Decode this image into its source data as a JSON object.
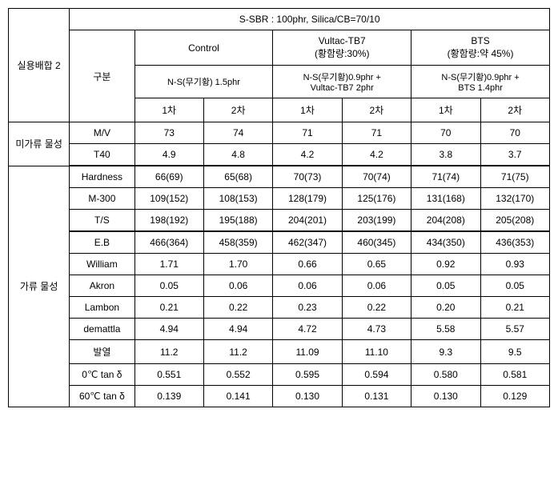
{
  "header": {
    "title": "S-SBR : 100phr, Silica/CB=70/10",
    "col_groups": [
      "Control",
      "Vultac-TB7\n(황함량:30%)",
      "BTS\n(황함량:약 45%)"
    ],
    "subheaders": [
      "N-S(무기황) 1.5phr",
      "N-S(무기황)0.9phr +\nVultac-TB7 2phr",
      "N-S(무기황)0.9phr +\nBTS 1.4phr"
    ],
    "trials": [
      "1차",
      "2차",
      "1차",
      "2차",
      "1차",
      "2차"
    ],
    "gubun": "구분"
  },
  "rowlabels": {
    "group1": "실용배합 2",
    "group2": "미가류 물성",
    "group3": "가류 물성"
  },
  "rows": [
    {
      "prop": "M/V",
      "vals": [
        "73",
        "74",
        "71",
        "71",
        "70",
        "70"
      ]
    },
    {
      "prop": "T40",
      "vals": [
        "4.9",
        "4.8",
        "4.2",
        "4.2",
        "3.8",
        "3.7"
      ]
    },
    {
      "prop": "Hardness",
      "vals": [
        "66(69)",
        "65(68)",
        "70(73)",
        "70(74)",
        "71(74)",
        "71(75)"
      ]
    },
    {
      "prop": "M-300",
      "vals": [
        "109(152)",
        "108(153)",
        "128(179)",
        "125(176)",
        "131(168)",
        "132(170)"
      ]
    },
    {
      "prop": "T/S",
      "vals": [
        "198(192)",
        "195(188)",
        "204(201)",
        "203(199)",
        "204(208)",
        "205(208)"
      ]
    },
    {
      "prop": "E.B",
      "vals": [
        "466(364)",
        "458(359)",
        "462(347)",
        "460(345)",
        "434(350)",
        "436(353)"
      ]
    },
    {
      "prop": "William",
      "vals": [
        "1.71",
        "1.70",
        "0.66",
        "0.65",
        "0.92",
        "0.93"
      ]
    },
    {
      "prop": "Akron",
      "vals": [
        "0.05",
        "0.06",
        "0.06",
        "0.06",
        "0.05",
        "0.05"
      ]
    },
    {
      "prop": "Lambon",
      "vals": [
        "0.21",
        "0.22",
        "0.23",
        "0.22",
        "0.20",
        "0.21"
      ]
    },
    {
      "prop": "demattla",
      "vals": [
        "4.94",
        "4.94",
        "4.72",
        "4.73",
        "5.58",
        "5.57"
      ]
    },
    {
      "prop": "발열",
      "vals": [
        "11.2",
        "11.2",
        "11.09",
        "11.10",
        "9.3",
        "9.5"
      ]
    },
    {
      "prop": "0℃ tan δ",
      "vals": [
        "0.551",
        "0.552",
        "0.595",
        "0.594",
        "0.580",
        "0.581"
      ]
    },
    {
      "prop": "60℃ tan δ",
      "vals": [
        "0.139",
        "0.141",
        "0.130",
        "0.131",
        "0.130",
        "0.129"
      ]
    }
  ]
}
